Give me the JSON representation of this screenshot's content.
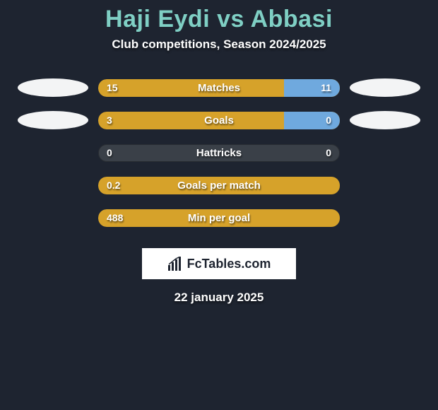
{
  "title": {
    "text": "Haji Eydi vs Abbasi",
    "color": "#7fcfc4"
  },
  "subtitle": "Club competitions, Season 2024/2025",
  "date": "22 january 2025",
  "brand": "FcTables.com",
  "colors": {
    "track": "#3a4048",
    "left_fill": "#d6a22a",
    "right_fill": "#6fa9de",
    "blob": "#f3f4f5",
    "background": "#1e2430"
  },
  "rows": [
    {
      "label": "Matches",
      "left_value": "15",
      "right_value": "11",
      "left_pct": 100,
      "right_pct": 23,
      "show_left_blob": true,
      "show_right_blob": true
    },
    {
      "label": "Goals",
      "left_value": "3",
      "right_value": "0",
      "left_pct": 100,
      "right_pct": 23,
      "show_left_blob": true,
      "show_right_blob": true
    },
    {
      "label": "Hattricks",
      "left_value": "0",
      "right_value": "0",
      "left_pct": 0,
      "right_pct": 0,
      "show_left_blob": false,
      "show_right_blob": false
    },
    {
      "label": "Goals per match",
      "left_value": "0.2",
      "right_value": "",
      "left_pct": 100,
      "right_pct": 0,
      "show_left_blob": false,
      "show_right_blob": false
    },
    {
      "label": "Min per goal",
      "left_value": "488",
      "right_value": "",
      "left_pct": 100,
      "right_pct": 0,
      "show_left_blob": false,
      "show_right_blob": false
    }
  ]
}
